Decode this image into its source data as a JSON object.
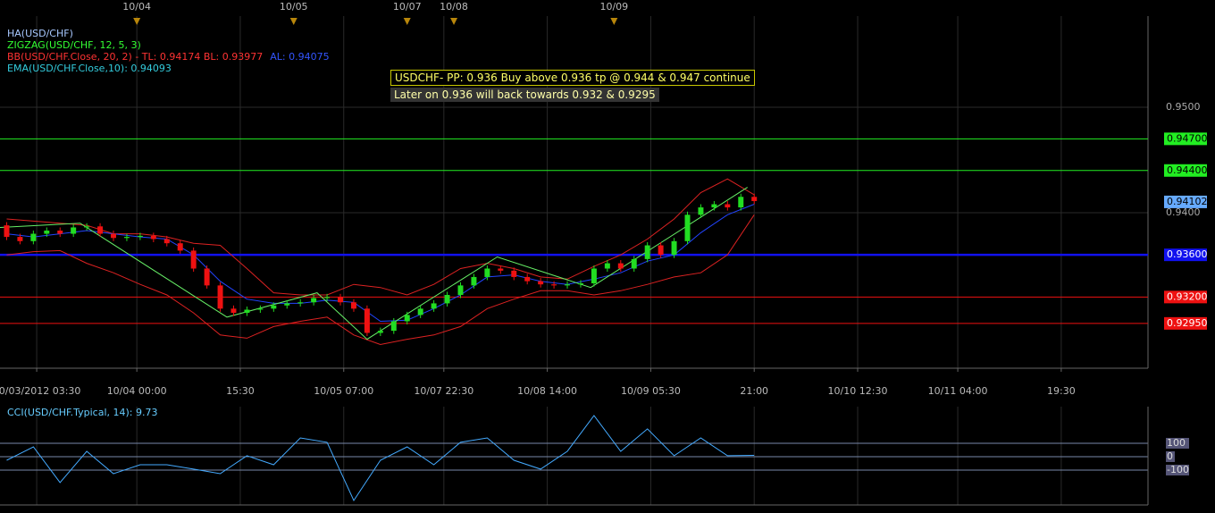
{
  "chart_data": [
    {
      "type": "candlestick",
      "legend_entries": [
        {
          "text": "HA(USD/CHF)",
          "color": "#a8c8ff"
        },
        {
          "text": "ZIGZAG(USD/CHF, 12, 5, 3)",
          "color": "#33ff33"
        },
        {
          "text": "BB(USD/CHF.Close, 20, 2) -  TL: 0.94174  BL: 0.93977",
          "color": "#ff3333"
        },
        {
          "text": "AL: 0.94075",
          "color": "#3355ff"
        },
        {
          "text": "EMA(USD/CHF.Close,10): 0.94093",
          "color": "#33ccdd"
        }
      ],
      "annotations": [
        "USDCHF- PP: 0.936 Buy above 0.936 tp @ 0.944 & 0.947 continue",
        "Later on 0.936 will back towards 0.932 & 0.9295"
      ],
      "x": [
        2,
        6,
        10,
        14,
        18,
        22,
        26,
        30,
        34,
        38,
        42,
        46,
        50,
        54,
        58,
        62,
        66,
        70,
        74,
        78,
        82,
        86,
        90,
        94,
        98,
        102,
        106,
        110,
        114,
        118,
        122,
        126,
        130,
        134,
        138,
        142,
        146,
        150,
        154,
        158,
        162,
        166,
        170,
        174,
        178,
        182,
        186,
        190,
        194,
        198,
        202,
        206,
        210,
        214,
        218,
        222,
        226
      ],
      "open": [
        0.9388,
        0.9377,
        0.9373,
        0.938,
        0.9383,
        0.938,
        0.9386,
        0.9387,
        0.938,
        0.9376,
        0.9377,
        0.9378,
        0.9375,
        0.9371,
        0.9364,
        0.9347,
        0.9331,
        0.9309,
        0.9305,
        0.9308,
        0.9309,
        0.9312,
        0.9314,
        0.9315,
        0.9319,
        0.932,
        0.9315,
        0.9309,
        0.9286,
        0.9288,
        0.9297,
        0.9303,
        0.9309,
        0.9314,
        0.9322,
        0.9331,
        0.9339,
        0.9347,
        0.9345,
        0.9339,
        0.9335,
        0.9332,
        0.9331,
        0.9332,
        0.9333,
        0.9347,
        0.9352,
        0.9347,
        0.9356,
        0.9369,
        0.936,
        0.9373,
        0.9398,
        0.9405,
        0.9408,
        0.9405,
        0.9415
      ],
      "high": [
        0.9391,
        0.938,
        0.9383,
        0.9386,
        0.9386,
        0.9389,
        0.939,
        0.939,
        0.9383,
        0.938,
        0.9381,
        0.9381,
        0.9378,
        0.9374,
        0.9367,
        0.935,
        0.9334,
        0.9312,
        0.9311,
        0.9312,
        0.9315,
        0.9317,
        0.9318,
        0.9322,
        0.9323,
        0.9323,
        0.9318,
        0.9312,
        0.9291,
        0.93,
        0.9306,
        0.9312,
        0.9317,
        0.9325,
        0.9334,
        0.9342,
        0.935,
        0.935,
        0.9348,
        0.9342,
        0.9338,
        0.9335,
        0.9335,
        0.9336,
        0.935,
        0.9355,
        0.9355,
        0.9359,
        0.9372,
        0.9372,
        0.9376,
        0.9401,
        0.9408,
        0.9411,
        0.9411,
        0.9418,
        0.9418
      ],
      "low": [
        0.9374,
        0.937,
        0.937,
        0.9377,
        0.9377,
        0.9377,
        0.9383,
        0.9377,
        0.9373,
        0.9373,
        0.9374,
        0.9372,
        0.9368,
        0.9361,
        0.9344,
        0.9328,
        0.9306,
        0.9302,
        0.9302,
        0.9305,
        0.9306,
        0.9309,
        0.9311,
        0.9312,
        0.9316,
        0.9312,
        0.9306,
        0.9283,
        0.9283,
        0.9285,
        0.9294,
        0.93,
        0.9306,
        0.9311,
        0.9319,
        0.9328,
        0.9336,
        0.9342,
        0.9336,
        0.9332,
        0.9329,
        0.9328,
        0.9328,
        0.9329,
        0.933,
        0.9344,
        0.9344,
        0.9344,
        0.9353,
        0.9357,
        0.9357,
        0.937,
        0.9395,
        0.9402,
        0.9402,
        0.9402,
        0.9408
      ],
      "close": [
        0.9377,
        0.9373,
        0.938,
        0.9383,
        0.938,
        0.9386,
        0.9387,
        0.938,
        0.9376,
        0.9377,
        0.9378,
        0.9375,
        0.9371,
        0.9364,
        0.9347,
        0.9331,
        0.9309,
        0.9305,
        0.9308,
        0.9309,
        0.9312,
        0.9314,
        0.9315,
        0.9319,
        0.932,
        0.9315,
        0.9309,
        0.9286,
        0.9288,
        0.9297,
        0.9303,
        0.9309,
        0.9314,
        0.9322,
        0.9331,
        0.9339,
        0.9347,
        0.9345,
        0.9339,
        0.9335,
        0.9332,
        0.9331,
        0.9332,
        0.9333,
        0.9347,
        0.9352,
        0.9347,
        0.9356,
        0.9369,
        0.936,
        0.9373,
        0.9398,
        0.9405,
        0.9408,
        0.9405,
        0.9415,
        0.9411
      ],
      "up_color": "#22dd22",
      "down_color": "#ee1111",
      "ema": {
        "color": "#2244ff",
        "x": [
          2,
          10,
          18,
          26,
          34,
          42,
          50,
          58,
          66,
          74,
          82,
          90,
          98,
          106,
          114,
          122,
          130,
          138,
          146,
          154,
          162,
          170,
          178,
          186,
          194,
          202,
          210,
          218,
          226
        ],
        "values": [
          0.938,
          0.9377,
          0.938,
          0.9383,
          0.938,
          0.9377,
          0.9375,
          0.936,
          0.9335,
          0.9318,
          0.9314,
          0.9314,
          0.9317,
          0.9315,
          0.9297,
          0.9298,
          0.9309,
          0.9322,
          0.9339,
          0.9341,
          0.9335,
          0.9332,
          0.9337,
          0.9343,
          0.9354,
          0.936,
          0.9381,
          0.9398,
          0.9408
        ]
      },
      "bb_upper": {
        "color": "#dd2222",
        "x": [
          2,
          10,
          18,
          26,
          34,
          42,
          50,
          58,
          66,
          74,
          82,
          90,
          98,
          106,
          114,
          122,
          130,
          138,
          146,
          154,
          162,
          170,
          178,
          186,
          194,
          202,
          210,
          218,
          226
        ],
        "values": [
          0.9394,
          0.9392,
          0.939,
          0.9388,
          0.938,
          0.938,
          0.9377,
          0.9371,
          0.9369,
          0.9347,
          0.9324,
          0.9322,
          0.9322,
          0.9332,
          0.9329,
          0.9322,
          0.9332,
          0.9347,
          0.9352,
          0.9347,
          0.9339,
          0.9337,
          0.9349,
          0.936,
          0.9375,
          0.9394,
          0.9419,
          0.9432,
          0.9417
        ]
      },
      "bb_lower": {
        "color": "#dd2222",
        "x": [
          2,
          10,
          18,
          26,
          34,
          42,
          50,
          58,
          66,
          74,
          82,
          90,
          98,
          106,
          114,
          122,
          130,
          138,
          146,
          154,
          162,
          170,
          178,
          186,
          194,
          202,
          210,
          218,
          226
        ],
        "values": [
          0.936,
          0.9363,
          0.9364,
          0.9352,
          0.9343,
          0.9332,
          0.9322,
          0.9305,
          0.9284,
          0.9281,
          0.9292,
          0.9297,
          0.9301,
          0.9284,
          0.9275,
          0.928,
          0.9284,
          0.9292,
          0.9309,
          0.9318,
          0.9326,
          0.9326,
          0.9322,
          0.9326,
          0.9332,
          0.9339,
          0.9343,
          0.936,
          0.9398
        ]
      },
      "zigzag": {
        "color": "#66ee66",
        "x": [
          0,
          24,
          68,
          95,
          110,
          149,
          177,
          224
        ],
        "values": [
          0.9386,
          0.939,
          0.9301,
          0.9324,
          0.928,
          0.9358,
          0.9329,
          0.9424
        ]
      },
      "xlim": [
        0,
        344
      ],
      "xticks": [
        {
          "value": 11,
          "label": "10/03/2012 03:30"
        },
        {
          "value": 41,
          "label": "10/04 00:00"
        },
        {
          "value": 72,
          "label": "15:30"
        },
        {
          "value": 103,
          "label": "10/05 07:00"
        },
        {
          "value": 133,
          "label": "10/07 22:30"
        },
        {
          "value": 164,
          "label": "10/08 14:00"
        },
        {
          "value": 195,
          "label": "10/09 05:30"
        },
        {
          "value": 226,
          "label": "21:00"
        },
        {
          "value": 257,
          "label": "10/10 12:30"
        },
        {
          "value": 287,
          "label": "10/11 04:00"
        },
        {
          "value": 318,
          "label": "19:30"
        }
      ],
      "day_markers": [
        {
          "value": 41,
          "label": "10/04"
        },
        {
          "value": 88,
          "label": "10/05"
        },
        {
          "value": 122,
          "label": "10/07"
        },
        {
          "value": 136,
          "label": "10/08"
        },
        {
          "value": 184,
          "label": "10/09"
        }
      ],
      "ylim": [
        0.92525,
        0.95864
      ],
      "yticks": [
        {
          "value": 0.95,
          "label": "0.9500"
        },
        {
          "value": 0.94,
          "label": "0.9400"
        }
      ],
      "levels": [
        {
          "value": 0.947,
          "label": "0.94700",
          "color": "#22ee22",
          "text_color": "#000000"
        },
        {
          "value": 0.944,
          "label": "0.94400",
          "color": "#22ee22",
          "text_color": "#000000"
        },
        {
          "value": 0.936,
          "label": "0.93600",
          "color": "#1111ee",
          "text_color": "#ffffff"
        },
        {
          "value": 0.932,
          "label": "0.93200",
          "color": "#ee1111",
          "text_color": "#ffffff"
        },
        {
          "value": 0.9295,
          "label": "0.92950",
          "color": "#ee1111",
          "text_color": "#ffffff"
        }
      ],
      "last_price": {
        "value": 0.94102,
        "label": "0.94102",
        "color": "#66aaff",
        "text_color": "#000000"
      }
    },
    {
      "type": "line",
      "title": "CCI(USD/CHF.Typical, 14): 9.73",
      "color": "#44aaff",
      "x": [
        2,
        10,
        18,
        26,
        34,
        42,
        50,
        58,
        66,
        74,
        82,
        90,
        98,
        106,
        114,
        122,
        130,
        138,
        146,
        154,
        162,
        170,
        178,
        186,
        194,
        202,
        210,
        218,
        226
      ],
      "values": [
        -27,
        73,
        -193,
        40,
        -127,
        -60,
        -60,
        -93,
        -127,
        7,
        -60,
        140,
        107,
        -327,
        -27,
        73,
        -60,
        107,
        140,
        -27,
        -93,
        40,
        307,
        40,
        207,
        7,
        140,
        7,
        10
      ],
      "xlim": [
        0,
        344
      ],
      "ylim": [
        -360,
        373
      ],
      "yticks": [
        100,
        0,
        -100
      ]
    }
  ]
}
